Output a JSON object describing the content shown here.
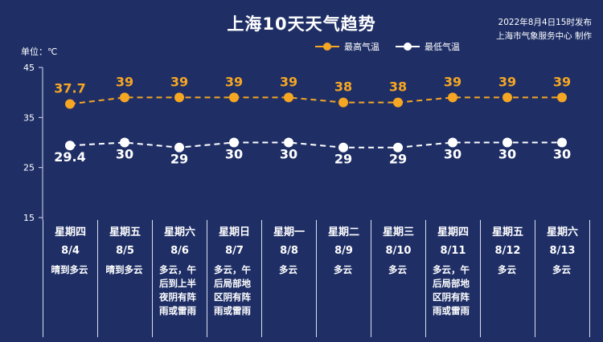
{
  "title": "上海10天天气趋势",
  "publish": {
    "line1": "2022年8月4日15时发布",
    "line2": "上海市气象服务中心 制作"
  },
  "unit": "单位：℃",
  "colors": {
    "high": "#f5a623",
    "low": "#ffffff",
    "background": "#1f2f66",
    "grid": "#d9def0"
  },
  "chart_data": {
    "type": "line",
    "title": "上海10天天气趋势",
    "xlabel": "",
    "ylabel": "单位：℃",
    "ylim": [
      15,
      45
    ],
    "yticks": [
      15,
      25,
      35,
      45
    ],
    "legend_position": "top",
    "series": [
      {
        "name": "最高气温",
        "values": [
          37.7,
          39,
          39,
          39,
          39,
          38,
          38,
          39,
          39,
          39
        ],
        "labels": [
          "37.7",
          "39",
          "39",
          "39",
          "39",
          "38",
          "38",
          "39",
          "39",
          "39"
        ]
      },
      {
        "name": "最低气温",
        "values": [
          29.4,
          30,
          29,
          30,
          30,
          29,
          29,
          30,
          30,
          30
        ],
        "labels": [
          "29.4",
          "30",
          "29",
          "30",
          "30",
          "29",
          "29",
          "30",
          "30",
          "30"
        ]
      }
    ],
    "days": [
      {
        "weekday": "星期四",
        "date": "8/4",
        "weather": "晴到多云"
      },
      {
        "weekday": "星期五",
        "date": "8/5",
        "weather": "晴到多云"
      },
      {
        "weekday": "星期六",
        "date": "8/6",
        "weather": "多云，午后到上半夜阴有阵雨或雷雨"
      },
      {
        "weekday": "星期日",
        "date": "8/7",
        "weather": "多云，午后局部地区阴有阵雨或雷雨"
      },
      {
        "weekday": "星期一",
        "date": "8/8",
        "weather": "多云"
      },
      {
        "weekday": "星期二",
        "date": "8/9",
        "weather": "多云"
      },
      {
        "weekday": "星期三",
        "date": "8/10",
        "weather": "多云"
      },
      {
        "weekday": "星期四",
        "date": "8/11",
        "weather": "多云，午后局部地区阴有阵雨或雷雨"
      },
      {
        "weekday": "星期五",
        "date": "8/12",
        "weather": "多云"
      },
      {
        "weekday": "星期六",
        "date": "8/13",
        "weather": "多云"
      }
    ]
  }
}
